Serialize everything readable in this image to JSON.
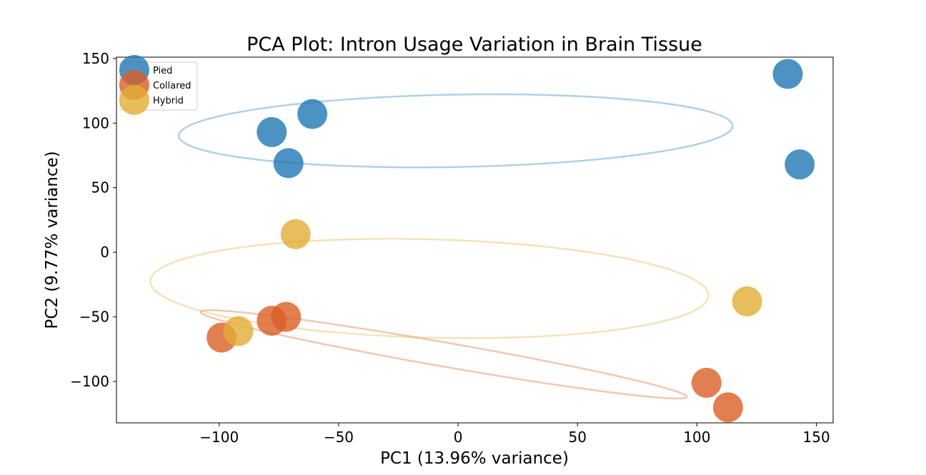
{
  "chart_data": {
    "type": "scatter",
    "title": "PCA Plot: Intron Usage Variation in Brain Tissue",
    "xlabel": "PC1 (13.96% variance)",
    "ylabel": "PC2 (9.77% variance)",
    "xlim": [
      -143,
      157
    ],
    "ylim": [
      -132,
      151
    ],
    "xticks": [
      -100,
      -50,
      0,
      50,
      100,
      150
    ],
    "xtick_labels": [
      "−100",
      "−50",
      "0",
      "50",
      "100",
      "150"
    ],
    "yticks": [
      -100,
      -50,
      0,
      50,
      100,
      150
    ],
    "ytick_labels": [
      "−100",
      "−50",
      "0",
      "50",
      "100",
      "150"
    ],
    "grid": false,
    "legend_position": "top-left",
    "series": [
      {
        "name": "Pied",
        "color": "#1f77b4",
        "points": [
          [
            138,
            138
          ],
          [
            143,
            68
          ],
          [
            -61,
            107
          ],
          [
            -78,
            93
          ],
          [
            -71,
            69
          ]
        ],
        "ellipse": {
          "cx": -1,
          "cy": 94,
          "rx": 116,
          "ry": 28,
          "angle_deg": 2,
          "note": "confidence ellipse in data units"
        }
      },
      {
        "name": "Collared",
        "color": "#d95f26",
        "points": [
          [
            -99,
            -66
          ],
          [
            -78,
            -53
          ],
          [
            -72,
            -50
          ],
          [
            104,
            -101
          ],
          [
            113,
            -120
          ]
        ],
        "ellipse": {
          "cx": -6,
          "cy": -79,
          "rx": 107,
          "ry": 9,
          "angle_deg": -18,
          "note": "confidence ellipse in data units"
        }
      },
      {
        "name": "Hybrid",
        "color": "#e2ac34",
        "points": [
          [
            -68,
            14
          ],
          [
            -92,
            -61
          ],
          [
            121,
            -38
          ]
        ],
        "ellipse": {
          "cx": -12,
          "cy": -28,
          "rx": 117,
          "ry": 38,
          "angle_deg": -3,
          "note": "confidence ellipse in data units"
        }
      }
    ]
  }
}
